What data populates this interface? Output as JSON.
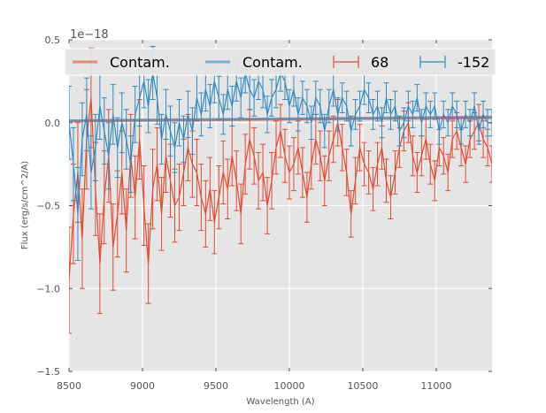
{
  "chart_data": {
    "type": "line",
    "title": "",
    "xlabel": "Wavelength (A)",
    "ylabel": "Flux (erg/s/cm^2/A)",
    "y_offset_label": "1e−18",
    "xlim": [
      8500,
      11380
    ],
    "ylim": [
      -1.5,
      0.5
    ],
    "xticks": [
      8500,
      9000,
      9500,
      10000,
      10500,
      11000
    ],
    "xtick_labels": [
      "8500",
      "9000",
      "9500",
      "10000",
      "10500",
      "11000"
    ],
    "yticks": [
      0.5,
      0.0,
      -0.5,
      -1.0,
      -1.5
    ],
    "ytick_labels": [
      "0.5",
      "0.0",
      "−0.5",
      "−1.0",
      "−1.5"
    ],
    "grid": true,
    "legend_placement": "top",
    "legend": [
      {
        "label": "Contam.",
        "type": "line",
        "color": "#E24A33"
      },
      {
        "label": "Contam.",
        "type": "line",
        "color": "#348ABD"
      },
      {
        "label": "68",
        "type": "errorbar",
        "color": "#E24A33"
      },
      {
        "label": "-152",
        "type": "errorbar",
        "color": "#348ABD"
      }
    ],
    "x": [
      8500,
      8530,
      8560,
      8590,
      8620,
      8650,
      8680,
      8710,
      8740,
      8770,
      8800,
      8830,
      8860,
      8890,
      8920,
      8950,
      8980,
      9010,
      9040,
      9070,
      9100,
      9130,
      9160,
      9190,
      9220,
      9250,
      9280,
      9310,
      9340,
      9370,
      9400,
      9430,
      9460,
      9490,
      9520,
      9550,
      9580,
      9610,
      9640,
      9670,
      9700,
      9730,
      9760,
      9790,
      9820,
      9850,
      9880,
      9910,
      9940,
      9970,
      10000,
      10030,
      10060,
      10090,
      10120,
      10150,
      10180,
      10210,
      10240,
      10270,
      10300,
      10330,
      10360,
      10390,
      10420,
      10450,
      10480,
      10510,
      10540,
      10570,
      10600,
      10630,
      10660,
      10690,
      10720,
      10750,
      10780,
      10810,
      10840,
      10870,
      10900,
      10930,
      10960,
      10990,
      11020,
      11050,
      11080,
      11110,
      11140,
      11170,
      11200,
      11230,
      11260,
      11290,
      11320,
      11350,
      11380
    ],
    "series": [
      {
        "name": "Contam.",
        "kind": "contam",
        "color": "#E24A33",
        "y_start": 0.01,
        "y_end": 0.03
      },
      {
        "name": "Contam.",
        "kind": "contam",
        "color": "#348ABD",
        "y_start": 0.012,
        "y_end": 0.035
      },
      {
        "name": "68",
        "kind": "errorbar",
        "color": "#E24A33",
        "y": [
          -0.95,
          -0.55,
          -0.3,
          -0.7,
          -0.1,
          0.15,
          -0.4,
          -0.85,
          -0.45,
          -0.2,
          -0.75,
          -0.55,
          -0.3,
          -0.65,
          -0.2,
          -0.45,
          -0.1,
          -0.5,
          -0.85,
          -0.4,
          -0.25,
          -0.55,
          -0.2,
          -0.35,
          -0.5,
          -0.45,
          -0.3,
          -0.15,
          -0.25,
          -0.3,
          -0.45,
          -0.55,
          -0.4,
          -0.6,
          -0.45,
          -0.3,
          -0.4,
          -0.2,
          -0.35,
          -0.55,
          -0.25,
          -0.1,
          -0.2,
          -0.35,
          -0.3,
          -0.5,
          -0.35,
          -0.15,
          -0.05,
          -0.2,
          -0.3,
          -0.25,
          -0.15,
          -0.3,
          -0.45,
          -0.25,
          -0.1,
          -0.2,
          -0.35,
          -0.2,
          -0.1,
          0.0,
          -0.15,
          -0.3,
          -0.55,
          -0.35,
          -0.15,
          -0.25,
          -0.3,
          -0.4,
          -0.25,
          -0.15,
          -0.35,
          -0.45,
          -0.3,
          -0.15,
          -0.05,
          0.0,
          -0.2,
          -0.3,
          -0.2,
          -0.1,
          -0.25,
          -0.35,
          -0.15,
          -0.2,
          -0.3,
          -0.1,
          -0.05,
          -0.15,
          -0.25,
          -0.1,
          -0.05,
          0.0,
          -0.1,
          -0.15,
          -0.25
        ],
        "yerr": [
          0.32,
          0.3,
          0.3,
          0.3,
          0.3,
          0.3,
          0.28,
          0.3,
          0.28,
          0.28,
          0.26,
          0.26,
          0.25,
          0.25,
          0.25,
          0.25,
          0.24,
          0.24,
          0.24,
          0.24,
          0.22,
          0.22,
          0.22,
          0.22,
          0.22,
          0.2,
          0.2,
          0.2,
          0.2,
          0.2,
          0.2,
          0.2,
          0.19,
          0.19,
          0.19,
          0.19,
          0.18,
          0.18,
          0.18,
          0.18,
          0.18,
          0.18,
          0.17,
          0.17,
          0.17,
          0.17,
          0.17,
          0.16,
          0.16,
          0.16,
          0.16,
          0.16,
          0.16,
          0.15,
          0.15,
          0.15,
          0.15,
          0.15,
          0.15,
          0.15,
          0.14,
          0.14,
          0.14,
          0.14,
          0.14,
          0.14,
          0.14,
          0.13,
          0.13,
          0.13,
          0.13,
          0.13,
          0.13,
          0.13,
          0.13,
          0.12,
          0.12,
          0.12,
          0.12,
          0.12,
          0.12,
          0.12,
          0.12,
          0.12,
          0.11,
          0.11,
          0.11,
          0.11,
          0.11,
          0.11,
          0.11,
          0.11,
          0.11,
          0.11,
          0.11,
          0.11,
          0.11
        ]
      },
      {
        "name": "-152",
        "kind": "errorbar",
        "color": "#348ABD",
        "y": [
          0.0,
          -0.25,
          -0.55,
          -0.1,
          0.05,
          -0.3,
          -0.15,
          0.1,
          -0.05,
          -0.2,
          0.05,
          -0.15,
          0.0,
          -0.1,
          -0.25,
          0.05,
          0.15,
          0.25,
          0.1,
          0.3,
          0.15,
          -0.1,
          0.05,
          -0.05,
          -0.15,
          0.0,
          -0.1,
          0.05,
          -0.05,
          0.15,
          0.05,
          0.2,
          0.1,
          0.25,
          0.15,
          0.05,
          0.2,
          0.1,
          0.25,
          0.15,
          0.3,
          0.2,
          0.15,
          0.25,
          0.2,
          0.05,
          0.15,
          0.2,
          0.3,
          0.25,
          0.1,
          0.2,
          0.05,
          0.15,
          0.1,
          0.0,
          0.15,
          0.1,
          -0.05,
          0.1,
          0.2,
          0.05,
          0.15,
          0.1,
          -0.05,
          0.05,
          0.1,
          0.2,
          0.15,
          0.05,
          0.1,
          0.0,
          0.15,
          0.05,
          0.1,
          -0.05,
          0.0,
          0.1,
          0.05,
          0.15,
          0.0,
          0.1,
          0.05,
          0.1,
          -0.05,
          0.05,
          0.0,
          0.1,
          0.05,
          -0.05,
          0.05,
          0.0,
          0.1,
          -0.05,
          0.05,
          0.0,
          0.0
        ],
        "yerr": [
          0.22,
          0.22,
          0.28,
          0.22,
          0.22,
          0.22,
          0.2,
          0.2,
          0.2,
          0.2,
          0.18,
          0.18,
          0.18,
          0.18,
          0.17,
          0.17,
          0.17,
          0.16,
          0.16,
          0.16,
          0.16,
          0.15,
          0.15,
          0.15,
          0.15,
          0.14,
          0.14,
          0.14,
          0.14,
          0.14,
          0.13,
          0.13,
          0.13,
          0.13,
          0.13,
          0.12,
          0.12,
          0.12,
          0.12,
          0.12,
          0.12,
          0.12,
          0.11,
          0.11,
          0.11,
          0.11,
          0.11,
          0.11,
          0.11,
          0.11,
          0.1,
          0.1,
          0.1,
          0.1,
          0.1,
          0.1,
          0.1,
          0.1,
          0.1,
          0.1,
          0.1,
          0.1,
          0.09,
          0.09,
          0.09,
          0.09,
          0.09,
          0.09,
          0.09,
          0.09,
          0.09,
          0.09,
          0.09,
          0.09,
          0.09,
          0.09,
          0.09,
          0.09,
          0.08,
          0.08,
          0.08,
          0.08,
          0.08,
          0.08,
          0.08,
          0.08,
          0.08,
          0.08,
          0.08,
          0.08,
          0.08,
          0.08,
          0.08,
          0.08,
          0.08,
          0.08,
          0.08
        ]
      }
    ]
  }
}
